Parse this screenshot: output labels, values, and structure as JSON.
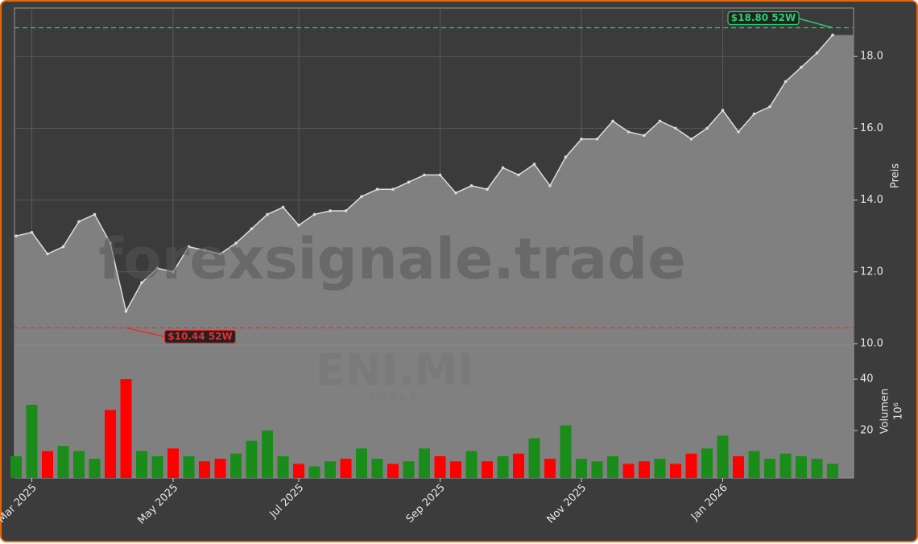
{
  "chart_data": [
    {
      "type": "area",
      "y_label": "Preis",
      "watermark": "forexsignale.trade",
      "symbol": "ENI.MI",
      "company": "Eni S.p.A",
      "values": [
        13.0,
        13.1,
        12.5,
        12.7,
        13.4,
        13.6,
        12.8,
        10.9,
        11.7,
        12.1,
        12.0,
        12.7,
        12.6,
        12.5,
        12.8,
        13.2,
        13.6,
        13.8,
        13.3,
        13.6,
        13.7,
        13.7,
        14.1,
        14.3,
        14.3,
        14.5,
        14.7,
        14.7,
        14.2,
        14.4,
        14.3,
        14.9,
        14.7,
        15.0,
        14.4,
        15.2,
        15.7,
        15.7,
        16.2,
        15.9,
        15.8,
        16.2,
        16.0,
        15.7,
        16.0,
        16.5,
        15.9,
        16.4,
        16.6,
        17.3,
        17.7,
        18.1,
        18.6
      ],
      "color": "#808080",
      "line_color": "#dcdcdc",
      "ylim": [
        10,
        19.35
      ],
      "yticks": [
        {
          "value": 10,
          "label": "10.0"
        },
        {
          "value": 12,
          "label": "12.0"
        },
        {
          "value": 14,
          "label": "14.0"
        },
        {
          "value": 16,
          "label": "16.0"
        },
        {
          "value": 18,
          "label": "18.0"
        }
      ],
      "grid": true,
      "hlines": [
        {
          "value": 18.8,
          "label": "$18.80 52W",
          "color": "#2ecc71",
          "index": 52
        },
        {
          "value": 10.44,
          "label": "$10.44 52W",
          "color": "#e03030",
          "index": 7
        }
      ]
    },
    {
      "type": "bar",
      "y_label": "Volumen",
      "y_unit": "10⁶",
      "categories": [
        null,
        "Mar 2025",
        null,
        null,
        null,
        null,
        null,
        null,
        null,
        null,
        "May 2025",
        null,
        null,
        null,
        null,
        null,
        null,
        null,
        "Jul 2025",
        null,
        null,
        null,
        null,
        null,
        null,
        null,
        null,
        "Sep 2025",
        null,
        null,
        null,
        null,
        null,
        null,
        null,
        null,
        "Nov 2025",
        null,
        null,
        null,
        null,
        null,
        null,
        null,
        null,
        "Jan 2026",
        null,
        null,
        null,
        null,
        null,
        null,
        null
      ],
      "values": [
        10,
        30,
        12,
        14,
        12,
        9,
        28,
        40,
        12,
        10,
        13,
        10,
        8,
        9,
        11,
        16,
        20,
        10,
        7,
        6,
        8,
        9,
        13,
        9,
        7,
        8,
        13,
        10,
        8,
        12,
        8,
        10,
        11,
        17,
        9,
        22,
        9,
        8,
        10,
        7,
        8,
        9,
        7,
        11,
        13,
        18,
        10,
        12,
        9,
        11,
        10,
        9,
        7
      ],
      "colors": [
        "#1a8c1a",
        "#1a8c1a",
        "#ff0000",
        "#1a8c1a",
        "#1a8c1a",
        "#1a8c1a",
        "#ff0000",
        "#ff0000",
        "#1a8c1a",
        "#1a8c1a",
        "#ff0000",
        "#1a8c1a",
        "#ff0000",
        "#ff0000",
        "#1a8c1a",
        "#1a8c1a",
        "#1a8c1a",
        "#1a8c1a",
        "#ff0000",
        "#1a8c1a",
        "#1a8c1a",
        "#ff0000",
        "#1a8c1a",
        "#1a8c1a",
        "#ff0000",
        "#1a8c1a",
        "#1a8c1a",
        "#ff0000",
        "#ff0000",
        "#1a8c1a",
        "#ff0000",
        "#1a8c1a",
        "#ff0000",
        "#1a8c1a",
        "#ff0000",
        "#1a8c1a",
        "#1a8c1a",
        "#1a8c1a",
        "#1a8c1a",
        "#ff0000",
        "#ff0000",
        "#1a8c1a",
        "#ff0000",
        "#ff0000",
        "#1a8c1a",
        "#1a8c1a",
        "#ff0000",
        "#1a8c1a",
        "#1a8c1a",
        "#1a8c1a",
        "#1a8c1a",
        "#1a8c1a",
        "#1a8c1a"
      ],
      "ylim": [
        1.5,
        53.5
      ],
      "yticks": [
        20,
        40
      ],
      "background": "#808080"
    }
  ]
}
